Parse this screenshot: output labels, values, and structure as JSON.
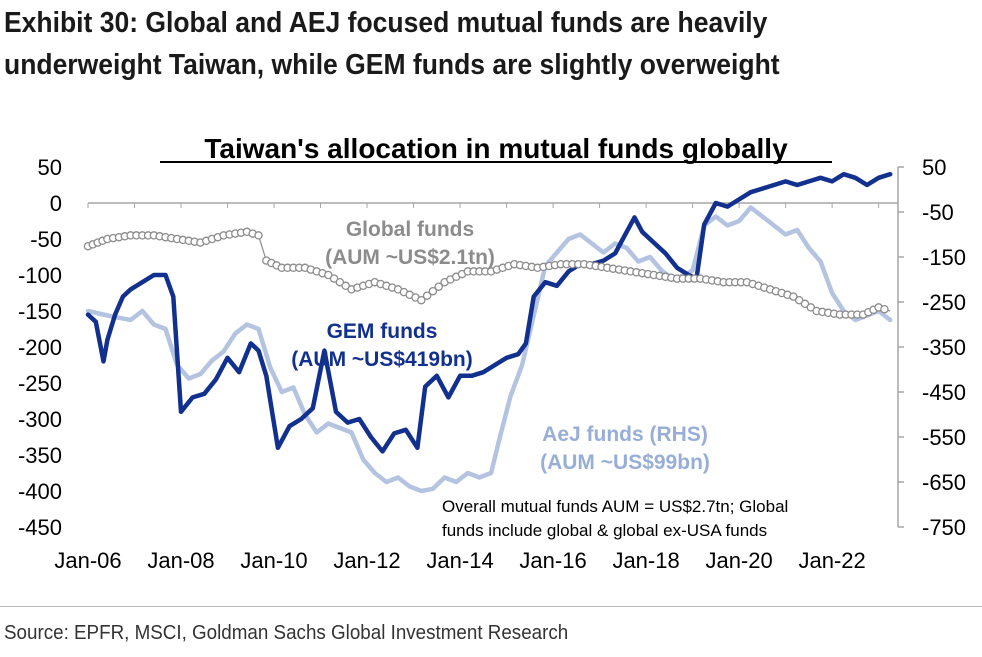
{
  "header": {
    "title_line1": "Exhibit 30: Global and AEJ focused mutual funds are heavily",
    "title_line2": "underweight Taiwan, while GEM funds are slightly overweight"
  },
  "footer": {
    "source": "Source: EPFR, MSCI, Goldman Sachs Global Investment Research"
  },
  "chart_data": {
    "type": "line",
    "title": "Taiwan's allocation in mutual funds globally",
    "x_range": [
      "2006-01",
      "2023-06"
    ],
    "x_ticks": [
      "Jan-06",
      "Jan-08",
      "Jan-10",
      "Jan-12",
      "Jan-14",
      "Jan-16",
      "Jan-18",
      "Jan-20",
      "Jan-22"
    ],
    "y_left": {
      "min": -450,
      "max": 50,
      "ticks": [
        50,
        0,
        -50,
        -100,
        -150,
        -200,
        -250,
        -300,
        -350,
        -400,
        -450
      ]
    },
    "y_right": {
      "min": -750,
      "max": 50,
      "ticks": [
        50,
        -50,
        -150,
        -250,
        -350,
        -450,
        -550,
        -650,
        -750
      ]
    },
    "series": [
      {
        "name": "GEM funds",
        "axis": "left",
        "color": "#12308e",
        "points": [
          [
            "2006-01",
            -155
          ],
          [
            "2006-03",
            -165
          ],
          [
            "2006-05",
            -220
          ],
          [
            "2006-06",
            -190
          ],
          [
            "2006-08",
            -155
          ],
          [
            "2006-10",
            -130
          ],
          [
            "2006-12",
            -120
          ],
          [
            "2007-03",
            -110
          ],
          [
            "2007-06",
            -100
          ],
          [
            "2007-09",
            -100
          ],
          [
            "2007-11",
            -130
          ],
          [
            "2008-01",
            -290
          ],
          [
            "2008-04",
            -270
          ],
          [
            "2008-07",
            -265
          ],
          [
            "2008-10",
            -245
          ],
          [
            "2009-01",
            -215
          ],
          [
            "2009-04",
            -235
          ],
          [
            "2009-07",
            -195
          ],
          [
            "2009-09",
            -205
          ],
          [
            "2009-11",
            -240
          ],
          [
            "2010-02",
            -340
          ],
          [
            "2010-05",
            -310
          ],
          [
            "2010-08",
            -300
          ],
          [
            "2010-11",
            -285
          ],
          [
            "2011-02",
            -205
          ],
          [
            "2011-05",
            -290
          ],
          [
            "2011-08",
            -305
          ],
          [
            "2011-11",
            -300
          ],
          [
            "2012-02",
            -325
          ],
          [
            "2012-05",
            -345
          ],
          [
            "2012-08",
            -320
          ],
          [
            "2012-11",
            -315
          ],
          [
            "2013-02",
            -340
          ],
          [
            "2013-04",
            -255
          ],
          [
            "2013-07",
            -240
          ],
          [
            "2013-10",
            -270
          ],
          [
            "2014-01",
            -240
          ],
          [
            "2014-04",
            -240
          ],
          [
            "2014-07",
            -235
          ],
          [
            "2014-10",
            -225
          ],
          [
            "2015-01",
            -215
          ],
          [
            "2015-04",
            -210
          ],
          [
            "2015-06",
            -195
          ],
          [
            "2015-08",
            -130
          ],
          [
            "2015-11",
            -110
          ],
          [
            "2016-02",
            -115
          ],
          [
            "2016-05",
            -95
          ],
          [
            "2016-08",
            -85
          ],
          [
            "2016-11",
            -85
          ],
          [
            "2017-02",
            -80
          ],
          [
            "2017-05",
            -70
          ],
          [
            "2017-08",
            -40
          ],
          [
            "2017-10",
            -20
          ],
          [
            "2017-12",
            -40
          ],
          [
            "2018-03",
            -55
          ],
          [
            "2018-06",
            -70
          ],
          [
            "2018-09",
            -90
          ],
          [
            "2018-12",
            -100
          ],
          [
            "2019-02",
            -105
          ],
          [
            "2019-04",
            -30
          ],
          [
            "2019-07",
            0
          ],
          [
            "2019-10",
            -5
          ],
          [
            "2020-01",
            5
          ],
          [
            "2020-04",
            15
          ],
          [
            "2020-07",
            20
          ],
          [
            "2020-10",
            25
          ],
          [
            "2021-01",
            30
          ],
          [
            "2021-04",
            25
          ],
          [
            "2021-07",
            30
          ],
          [
            "2021-10",
            35
          ],
          [
            "2022-01",
            30
          ],
          [
            "2022-04",
            40
          ],
          [
            "2022-07",
            35
          ],
          [
            "2022-10",
            25
          ],
          [
            "2023-01",
            35
          ],
          [
            "2023-04",
            40
          ]
        ]
      },
      {
        "name": "AeJ funds (RHS)",
        "axis": "right",
        "color": "#b3c3e0",
        "points": [
          [
            "2006-01",
            -270
          ],
          [
            "2006-06",
            -280
          ],
          [
            "2006-12",
            -290
          ],
          [
            "2007-03",
            -270
          ],
          [
            "2007-06",
            -300
          ],
          [
            "2007-09",
            -310
          ],
          [
            "2007-12",
            -390
          ],
          [
            "2008-03",
            -420
          ],
          [
            "2008-06",
            -410
          ],
          [
            "2008-09",
            -380
          ],
          [
            "2008-12",
            -360
          ],
          [
            "2009-03",
            -320
          ],
          [
            "2009-06",
            -300
          ],
          [
            "2009-09",
            -310
          ],
          [
            "2009-12",
            -395
          ],
          [
            "2010-03",
            -450
          ],
          [
            "2010-06",
            -440
          ],
          [
            "2010-09",
            -500
          ],
          [
            "2010-12",
            -540
          ],
          [
            "2011-03",
            -520
          ],
          [
            "2011-06",
            -530
          ],
          [
            "2011-09",
            -540
          ],
          [
            "2011-12",
            -600
          ],
          [
            "2012-03",
            -630
          ],
          [
            "2012-06",
            -650
          ],
          [
            "2012-09",
            -640
          ],
          [
            "2012-12",
            -660
          ],
          [
            "2013-03",
            -670
          ],
          [
            "2013-06",
            -665
          ],
          [
            "2013-09",
            -640
          ],
          [
            "2013-12",
            -650
          ],
          [
            "2014-03",
            -630
          ],
          [
            "2014-06",
            -640
          ],
          [
            "2014-09",
            -630
          ],
          [
            "2014-11",
            -560
          ],
          [
            "2015-02",
            -460
          ],
          [
            "2015-05",
            -390
          ],
          [
            "2015-08",
            -280
          ],
          [
            "2015-11",
            -170
          ],
          [
            "2016-02",
            -140
          ],
          [
            "2016-05",
            -110
          ],
          [
            "2016-08",
            -100
          ],
          [
            "2016-11",
            -120
          ],
          [
            "2017-02",
            -140
          ],
          [
            "2017-05",
            -120
          ],
          [
            "2017-08",
            -130
          ],
          [
            "2017-11",
            -160
          ],
          [
            "2018-02",
            -150
          ],
          [
            "2018-05",
            -180
          ],
          [
            "2018-08",
            -200
          ],
          [
            "2018-11",
            -190
          ],
          [
            "2019-01",
            -180
          ],
          [
            "2019-04",
            -80
          ],
          [
            "2019-07",
            -60
          ],
          [
            "2019-10",
            -80
          ],
          [
            "2020-01",
            -70
          ],
          [
            "2020-04",
            -40
          ],
          [
            "2020-07",
            -60
          ],
          [
            "2020-10",
            -80
          ],
          [
            "2021-01",
            -100
          ],
          [
            "2021-04",
            -90
          ],
          [
            "2021-07",
            -130
          ],
          [
            "2021-10",
            -160
          ],
          [
            "2022-01",
            -230
          ],
          [
            "2022-04",
            -270
          ],
          [
            "2022-07",
            -290
          ],
          [
            "2022-10",
            -280
          ],
          [
            "2023-01",
            -270
          ],
          [
            "2023-04",
            -290
          ]
        ]
      },
      {
        "name": "Global funds",
        "axis": "left",
        "color": "#8c8c8c",
        "points": [
          [
            "2006-01",
            -60
          ],
          [
            "2006-06",
            -50
          ],
          [
            "2006-12",
            -45
          ],
          [
            "2007-06",
            -45
          ],
          [
            "2007-12",
            -50
          ],
          [
            "2008-06",
            -55
          ],
          [
            "2008-12",
            -45
          ],
          [
            "2009-06",
            -40
          ],
          [
            "2009-09",
            -45
          ],
          [
            "2009-11",
            -80
          ],
          [
            "2010-03",
            -90
          ],
          [
            "2010-09",
            -90
          ],
          [
            "2011-03",
            -100
          ],
          [
            "2011-09",
            -120
          ],
          [
            "2012-03",
            -110
          ],
          [
            "2012-09",
            -120
          ],
          [
            "2013-03",
            -135
          ],
          [
            "2013-09",
            -110
          ],
          [
            "2014-03",
            -95
          ],
          [
            "2014-09",
            -95
          ],
          [
            "2015-03",
            -85
          ],
          [
            "2015-09",
            -90
          ],
          [
            "2016-03",
            -85
          ],
          [
            "2016-09",
            -85
          ],
          [
            "2017-03",
            -90
          ],
          [
            "2017-09",
            -95
          ],
          [
            "2018-03",
            -100
          ],
          [
            "2018-09",
            -105
          ],
          [
            "2019-03",
            -105
          ],
          [
            "2019-09",
            -110
          ],
          [
            "2020-03",
            -110
          ],
          [
            "2020-09",
            -120
          ],
          [
            "2021-03",
            -130
          ],
          [
            "2021-09",
            -150
          ],
          [
            "2022-03",
            -155
          ],
          [
            "2022-09",
            -155
          ],
          [
            "2023-01",
            -145
          ],
          [
            "2023-04",
            -150
          ]
        ]
      }
    ],
    "annotations": [
      {
        "name": "global-funds-label",
        "lines": [
          "Global funds",
          "(AUM ~US$2.1tn)"
        ],
        "color": "#8c8c8c"
      },
      {
        "name": "gem-funds-label",
        "lines": [
          "GEM funds",
          "(AUM ~US$419bn)"
        ],
        "color": "#12308e"
      },
      {
        "name": "aej-funds-label",
        "lines": [
          "AeJ funds (RHS)",
          "(AUM ~US$99bn)"
        ],
        "color": "#98aed6"
      },
      {
        "name": "aum-note",
        "lines": [
          "Overall mutual funds AUM = US$2.7tn; Global",
          "funds include global & global ex-USA funds"
        ],
        "color": "#000000"
      }
    ]
  }
}
